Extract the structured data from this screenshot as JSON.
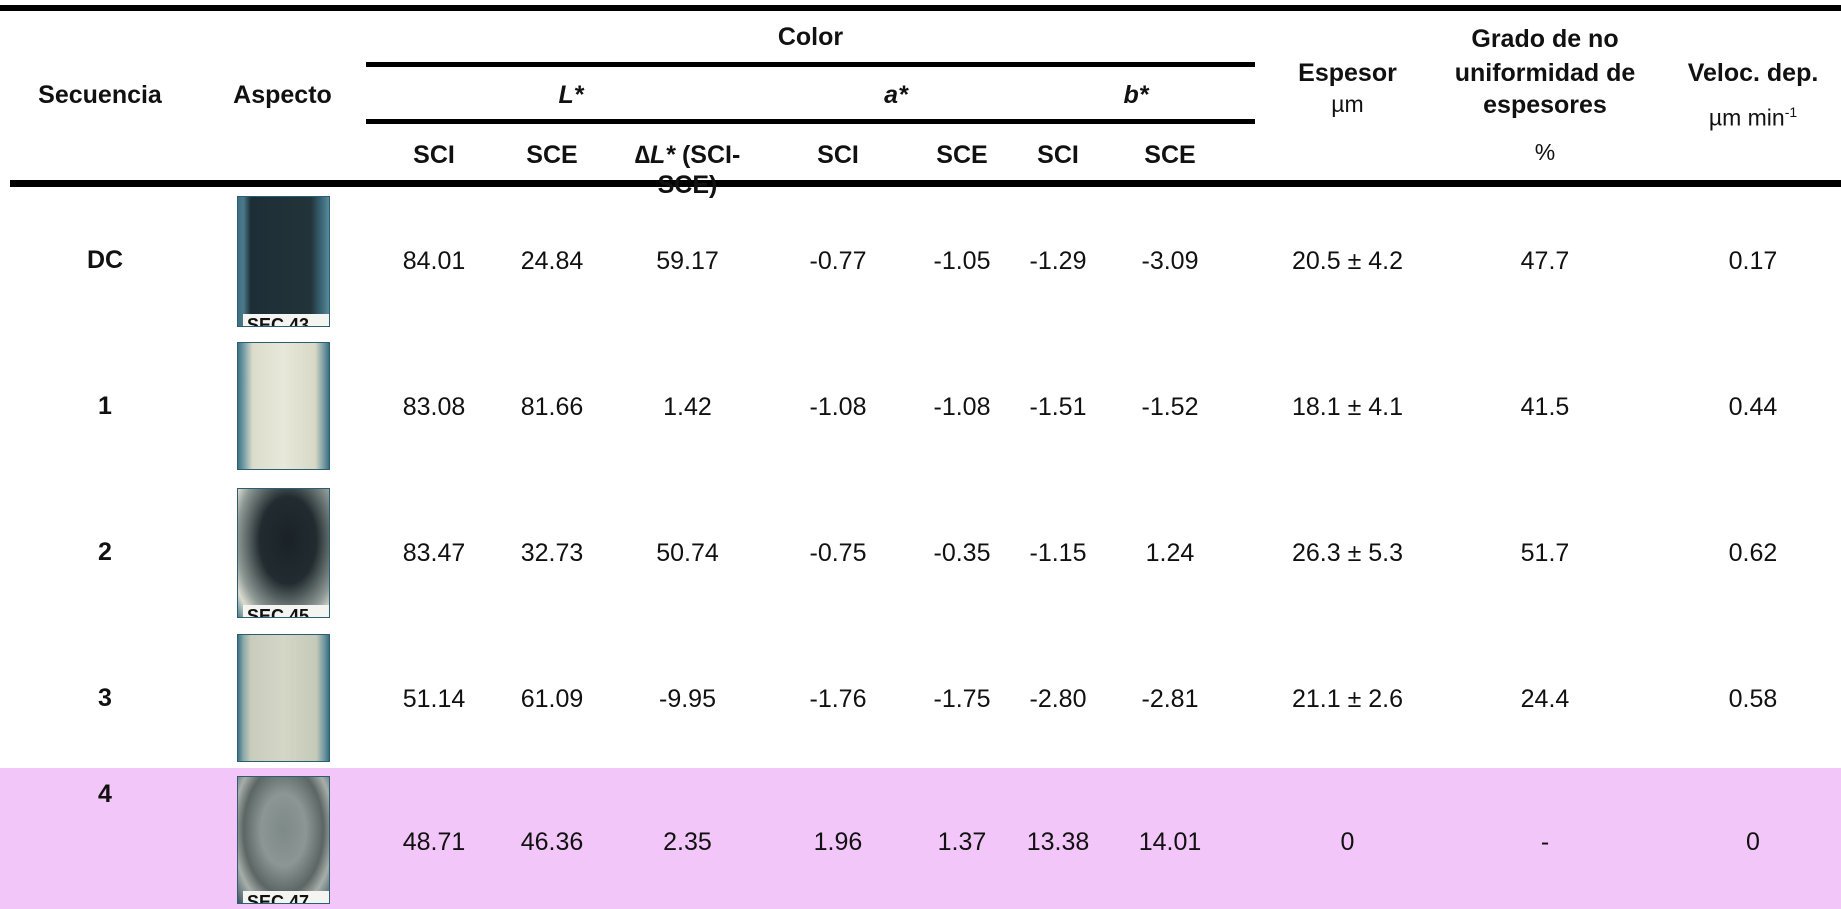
{
  "headers": {
    "secuencia": "Secuencia",
    "aspecto": "Aspecto",
    "color": "Color",
    "L": "L*",
    "a": "a*",
    "b": "b*",
    "sci": "SCI",
    "sce": "SCE",
    "dL_symbol": "∆L*",
    "dL_rest": " (SCI-SCE)",
    "espesor": "Espesor",
    "espesor_unit": "µm",
    "grado_line1": "Grado de no",
    "grado_line2": "uniformidad de",
    "grado_line3": "espesores",
    "grado_unit": "%",
    "veloc": "Veloc. dep.",
    "veloc_unit": "µm min",
    "veloc_exp": "-1"
  },
  "rows": [
    {
      "seq": "DC",
      "chip": "SEC 43",
      "L_sci": "84.01",
      "L_sce": "24.84",
      "dL": "59.17",
      "a_sci": "-0.77",
      "a_sce": "-1.05",
      "b_sci": "-1.29",
      "b_sce": "-3.09",
      "espesor": "20.5 ± 4.2",
      "grado": "47.7",
      "veloc": "0.17"
    },
    {
      "seq": "1",
      "chip": "",
      "L_sci": "83.08",
      "L_sce": "81.66",
      "dL": "1.42",
      "a_sci": "-1.08",
      "a_sce": "-1.08",
      "b_sci": "-1.51",
      "b_sce": "-1.52",
      "espesor": "18.1 ± 4.1",
      "grado": "41.5",
      "veloc": "0.44"
    },
    {
      "seq": "2",
      "chip": "SEC 45",
      "L_sci": "83.47",
      "L_sce": "32.73",
      "dL": "50.74",
      "a_sci": "-0.75",
      "a_sce": "-0.35",
      "b_sci": "-1.15",
      "b_sce": "1.24",
      "espesor": "26.3 ± 5.3",
      "grado": "51.7",
      "veloc": "0.62"
    },
    {
      "seq": "3",
      "chip": "",
      "L_sci": "51.14",
      "L_sce": "61.09",
      "dL": "-9.95",
      "a_sci": "-1.76",
      "a_sce": "-1.75",
      "b_sci": "-2.80",
      "b_sce": "-2.81",
      "espesor": "21.1 ± 2.6",
      "grado": "24.4",
      "veloc": "0.58"
    },
    {
      "seq": "4",
      "chip": "SEC 47",
      "L_sci": "48.71",
      "L_sce": "46.36",
      "dL": "2.35",
      "a_sci": "1.96",
      "a_sce": "1.37",
      "b_sci": "13.38",
      "b_sce": "14.01",
      "espesor": "0",
      "grado": "-",
      "veloc": "0"
    }
  ],
  "colors": {
    "highlight_row": "#f2c6f8",
    "panel_border": "#2a5f73"
  }
}
